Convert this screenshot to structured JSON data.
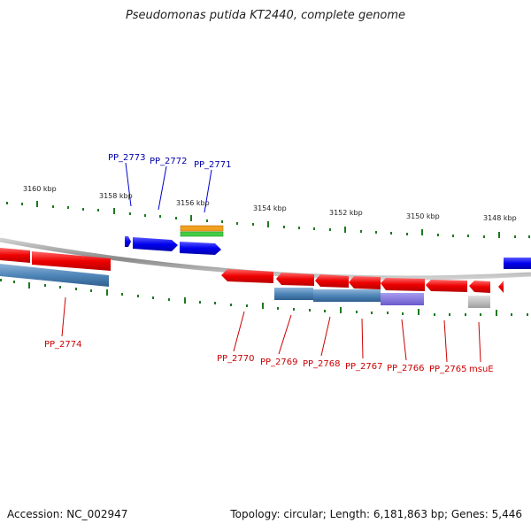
{
  "title": "Pseudomonas putida KT2440, complete genome",
  "accession": "Accession: NC_002947",
  "summary": "Topology: circular; Length: 6,181,863 bp; Genes: 5,446",
  "ruler": {
    "labels": [
      "3160 kbp",
      "3158 kbp",
      "3156 kbp",
      "3154 kbp",
      "3152 kbp",
      "3150 kbp",
      "3148 kbp"
    ]
  },
  "genes": {
    "top": [
      "PP_2773",
      "PP_2772",
      "PP_2771"
    ],
    "bottom": [
      "PP_2774",
      "PP_2770",
      "PP_2769",
      "PP_2768",
      "PP_2767",
      "PP_2766",
      "PP_2765",
      "msuE"
    ]
  },
  "colors": {
    "forward_gene": "#0000ee",
    "reverse_gene": "#ee0000",
    "top_label": "#0000aa",
    "bottom_label": "#cc0000",
    "cds_band": "#4f86b8",
    "cds_band_purple": "#7b6cd6",
    "cds_band_gray": "#b4b4b4",
    "rna_orange": "#f0a020",
    "rna_green": "#44cc44",
    "backbone": "#8a8a8a",
    "tick": "#1e7a1e"
  }
}
